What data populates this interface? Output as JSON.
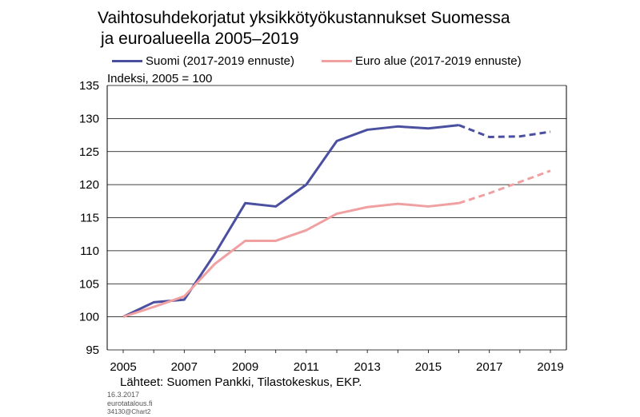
{
  "title_line1": "Vaihtosuhdekorjatut yksikkötyökustannukset Suomessa",
  "title_line2": "ja euroalueella 2005–2019",
  "unit_label": "Indeksi, 2005 = 100",
  "source": "Lähteet: Suomen Pankki, Tilastokeskus, EKP.",
  "meta": {
    "date": "16.3.2017",
    "site": "eurotatalous.fi",
    "code": "34130@Chart2"
  },
  "colors": {
    "suomi": "#4b4f9f",
    "euro": "#f0a0a0",
    "axis": "#000000"
  },
  "chart_data": {
    "type": "line",
    "title": "Vaihtosuhdekorjatut yksikkötyökustannukset Suomessa ja euroalueella 2005–2019",
    "ylabel": "Indeksi, 2005 = 100",
    "xlabel": "",
    "xlim": [
      2005,
      2019
    ],
    "ylim": [
      95,
      135
    ],
    "yticks": [
      95,
      100,
      105,
      110,
      115,
      120,
      125,
      130,
      135
    ],
    "xticks": [
      2005,
      2007,
      2009,
      2011,
      2013,
      2015,
      2017,
      2019
    ],
    "grid": "horizontal",
    "legend_position": "top",
    "forecast_from": 2016,
    "series": [
      {
        "name": "Suomi (2017-2019 ennuste)",
        "x": [
          2005,
          2006,
          2007,
          2008,
          2009,
          2010,
          2011,
          2012,
          2013,
          2014,
          2015,
          2016,
          2017,
          2018,
          2019
        ],
        "values": [
          100,
          102.2,
          102.6,
          109.5,
          117.2,
          116.7,
          120.0,
          126.6,
          128.3,
          128.8,
          128.5,
          129.0,
          127.2,
          127.3,
          128.0
        ]
      },
      {
        "name": "Euro alue (2017-2019 ennuste)",
        "x": [
          2005,
          2006,
          2007,
          2008,
          2009,
          2010,
          2011,
          2012,
          2013,
          2014,
          2015,
          2016,
          2017,
          2018,
          2019
        ],
        "values": [
          100,
          101.5,
          103.1,
          108.0,
          111.5,
          111.5,
          113.1,
          115.6,
          116.6,
          117.1,
          116.7,
          117.2,
          118.7,
          120.4,
          122.1
        ]
      }
    ]
  }
}
